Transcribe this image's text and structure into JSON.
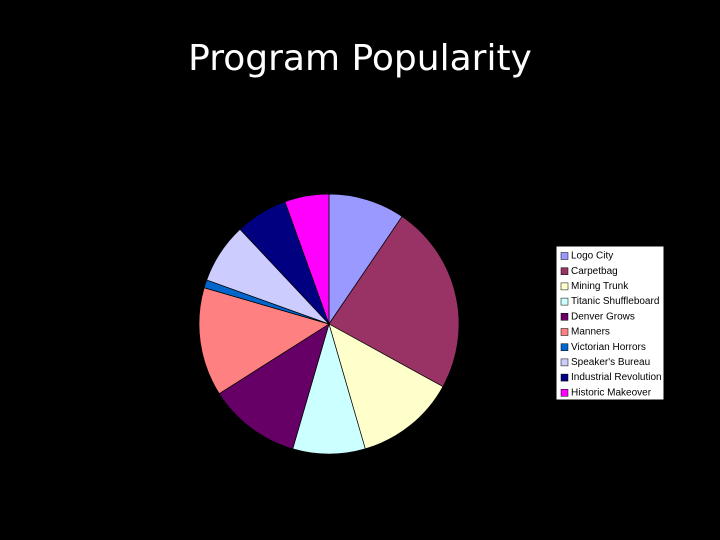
{
  "chart_data": {
    "type": "pie",
    "title": "Program Popularity",
    "categories": [
      "Logo City",
      "Carpetbag",
      "Mining Trunk",
      "Titanic Shuffleboard",
      "Denver Grows",
      "Manners",
      "Victorian Horrors",
      "Speaker's Bureau",
      "Industrial Revolution",
      "Historic Makeover"
    ],
    "values": [
      9.5,
      23.5,
      12.5,
      9,
      11.5,
      13.5,
      1,
      7.5,
      6.5,
      5.5
    ],
    "colors": [
      "#9999ff",
      "#993366",
      "#ffffcc",
      "#ccffff",
      "#660066",
      "#ff8080",
      "#0066cc",
      "#ccccff",
      "#000080",
      "#ff00ff"
    ],
    "legend": "right"
  }
}
